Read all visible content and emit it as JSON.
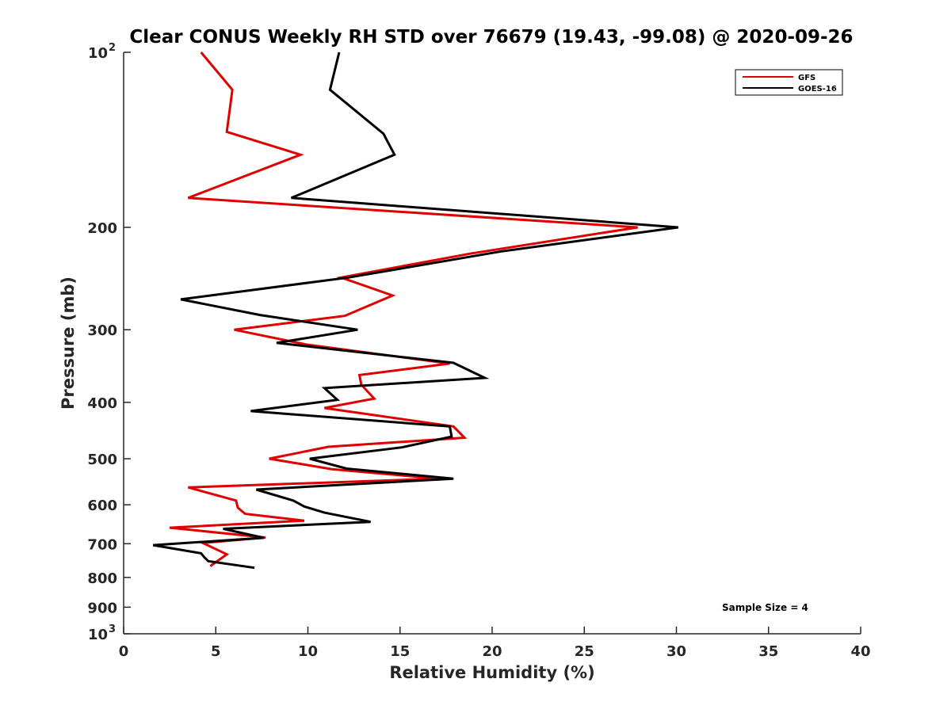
{
  "chart_data": {
    "type": "line",
    "title": "Clear CONUS Weekly RH STD over 76679 (19.43, -99.08) @ 2020-09-26",
    "xlabel": "Relative Humidity (%)",
    "ylabel": "Pressure (mb)",
    "xlim": [
      0,
      40
    ],
    "ylim": [
      100,
      1000
    ],
    "y_scale": "log",
    "y_reversed": true,
    "x_ticks": [
      0,
      5,
      10,
      15,
      20,
      25,
      30,
      35,
      40
    ],
    "y_ticks": [
      {
        "value": 100,
        "base": "10",
        "exp": "2"
      },
      {
        "value": 200,
        "label": "200"
      },
      {
        "value": 300,
        "label": "300"
      },
      {
        "value": 400,
        "label": "400"
      },
      {
        "value": 500,
        "label": "500"
      },
      {
        "value": 600,
        "label": "600"
      },
      {
        "value": 700,
        "label": "700"
      },
      {
        "value": 800,
        "label": "800"
      },
      {
        "value": 900,
        "label": "900"
      },
      {
        "value": 1000,
        "base": "10",
        "exp": "3"
      }
    ],
    "grid": false,
    "legend_position": "top-right",
    "annotation": "Sample Size = 4",
    "series": [
      {
        "name": "GFS",
        "color": "#e00000",
        "x": [
          4.2,
          5.9,
          5.6,
          9.6,
          3.5,
          27.9,
          18.8,
          11.8,
          14.6,
          12.0,
          6.0,
          9.9,
          17.7,
          12.8,
          12.9,
          13.6,
          10.9,
          17.9,
          18.5,
          11.1,
          7.9,
          11.3,
          17.1,
          3.5,
          6.1,
          6.2,
          6.6,
          9.8,
          2.5,
          7.7,
          4.3,
          5.6,
          4.7
        ],
        "y": [
          100,
          116,
          137,
          150,
          178,
          200,
          222,
          244,
          262,
          284,
          300,
          318,
          343,
          359,
          373,
          394,
          409,
          440,
          460,
          477,
          500,
          521,
          541,
          560,
          590,
          607,
          622,
          639,
          657,
          683,
          698,
          730,
          765
        ]
      },
      {
        "name": "GOES-16",
        "color": "#000000",
        "x": [
          11.7,
          11.2,
          14.1,
          14.7,
          9.1,
          30.1,
          20.5,
          12.2,
          3.1,
          7.4,
          12.7,
          8.3,
          17.9,
          19.6,
          10.9,
          11.6,
          6.9,
          17.7,
          17.8,
          15.1,
          10.1,
          12.1,
          17.9,
          7.2,
          9.2,
          9.8,
          10.9,
          13.4,
          5.4,
          7.6,
          1.6,
          4.2,
          4.4,
          4.6,
          7.1
        ],
        "y": [
          100,
          116,
          138,
          150,
          178,
          200,
          220,
          244,
          266,
          283,
          300,
          316,
          342,
          363,
          378,
          396,
          414,
          440,
          458,
          478,
          500,
          520,
          541,
          565,
          590,
          604,
          619,
          642,
          660,
          684,
          704,
          727,
          740,
          750,
          770
        ]
      }
    ]
  }
}
